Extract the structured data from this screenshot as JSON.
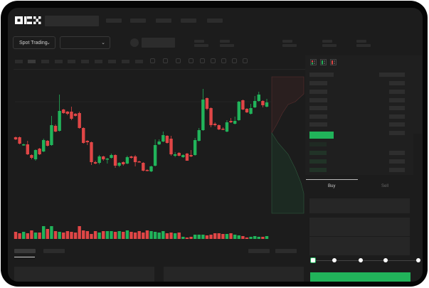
{
  "header": {
    "logo": "OKX"
  },
  "toolbar": {
    "market_selector": "Spot Trading"
  },
  "order_form": {
    "tabs": [
      {
        "label": "Buy",
        "active": true
      },
      {
        "label": "Sell",
        "active": false
      }
    ],
    "slider_percent": 0,
    "submit_color": "#21b35a"
  },
  "colors": {
    "up": "#21b35a",
    "down": "#e04646",
    "background": "#1c1c1c"
  },
  "icons": [
    "chevron-down-icon",
    "orderbook-both-icon",
    "orderbook-bids-icon",
    "orderbook-asks-icon"
  ],
  "chart_data": {
    "type": "candlestick",
    "title": "",
    "xlabel": "",
    "ylabel": "",
    "candles": [
      [
        68,
        69,
        64,
        65
      ],
      [
        68,
        69,
        58,
        59
      ],
      [
        57,
        59,
        56,
        58
      ],
      [
        58,
        63,
        43,
        44
      ],
      [
        43,
        44,
        37,
        39
      ],
      [
        37,
        51,
        35,
        50
      ],
      [
        52,
        53,
        43,
        44
      ],
      [
        48,
        66,
        47,
        64
      ],
      [
        63,
        64,
        55,
        56
      ],
      [
        57,
        98,
        56,
        85
      ],
      [
        84,
        86,
        75,
        76
      ],
      [
        77,
        128,
        76,
        105
      ],
      [
        107,
        108,
        101,
        102
      ],
      [
        104,
        105,
        99,
        101
      ],
      [
        104,
        111,
        92,
        94
      ],
      [
        101,
        102,
        97,
        98
      ],
      [
        102,
        104,
        80,
        81
      ],
      [
        81,
        82,
        59,
        60
      ],
      [
        63,
        64,
        57,
        61
      ],
      [
        61,
        62,
        29,
        33
      ],
      [
        33,
        35,
        30,
        31
      ],
      [
        32,
        43,
        30,
        41
      ],
      [
        41,
        42,
        35,
        37
      ],
      [
        37,
        39,
        31,
        38
      ],
      [
        39,
        45,
        38,
        43
      ],
      [
        43,
        44,
        25,
        28
      ],
      [
        28,
        33,
        26,
        32
      ],
      [
        33,
        34,
        28,
        30
      ],
      [
        31,
        42,
        30,
        40
      ],
      [
        41,
        42,
        38,
        39
      ],
      [
        41,
        43,
        27,
        33
      ],
      [
        34,
        35,
        33,
        33
      ],
      [
        32,
        33,
        20,
        21
      ],
      [
        22,
        23,
        20,
        21
      ],
      [
        20,
        28,
        19,
        27
      ],
      [
        28,
        65,
        27,
        57
      ],
      [
        58,
        65,
        57,
        62
      ],
      [
        62,
        76,
        61,
        71
      ],
      [
        70,
        71,
        59,
        60
      ],
      [
        66,
        70,
        42,
        44
      ],
      [
        42,
        47,
        40,
        44
      ],
      [
        46,
        47,
        41,
        42
      ],
      [
        40,
        44,
        39,
        43
      ],
      [
        45,
        46,
        35,
        35
      ],
      [
        43,
        50,
        40,
        41
      ],
      [
        43,
        67,
        42,
        64
      ],
      [
        63,
        81,
        62,
        78
      ],
      [
        78,
        136,
        77,
        121
      ],
      [
        123,
        124,
        106,
        108
      ],
      [
        109,
        110,
        82,
        85
      ],
      [
        87,
        89,
        83,
        85
      ],
      [
        85,
        86,
        78,
        79
      ],
      [
        80,
        82,
        78,
        79
      ],
      [
        76,
        92,
        75,
        89
      ],
      [
        91,
        95,
        88,
        89
      ],
      [
        87,
        97,
        86,
        91
      ],
      [
        92,
        119,
        91,
        118
      ],
      [
        120,
        121,
        106,
        107
      ],
      [
        108,
        109,
        102,
        103
      ],
      [
        101,
        115,
        100,
        109
      ],
      [
        110,
        126,
        109,
        119
      ],
      [
        119,
        132,
        118,
        128
      ],
      [
        119,
        120,
        110,
        113
      ],
      [
        111,
        122,
        110,
        117
      ]
    ],
    "candle_fields": [
      "open",
      "high",
      "low",
      "close"
    ],
    "volume": [
      10,
      8,
      10,
      8,
      12,
      9,
      9,
      18,
      14,
      18,
      11,
      10,
      9,
      11,
      10,
      9,
      18,
      12,
      11,
      7,
      11,
      9,
      11,
      11,
      11,
      10,
      11,
      10,
      12,
      10,
      9,
      11,
      9,
      12,
      11,
      10,
      9,
      11,
      8,
      9,
      8,
      9,
      3,
      2,
      3,
      6,
      6,
      6,
      5,
      6,
      8,
      8,
      7,
      7,
      8,
      6,
      5,
      4,
      2,
      3,
      4,
      3,
      3,
      4
    ],
    "grid": false
  }
}
